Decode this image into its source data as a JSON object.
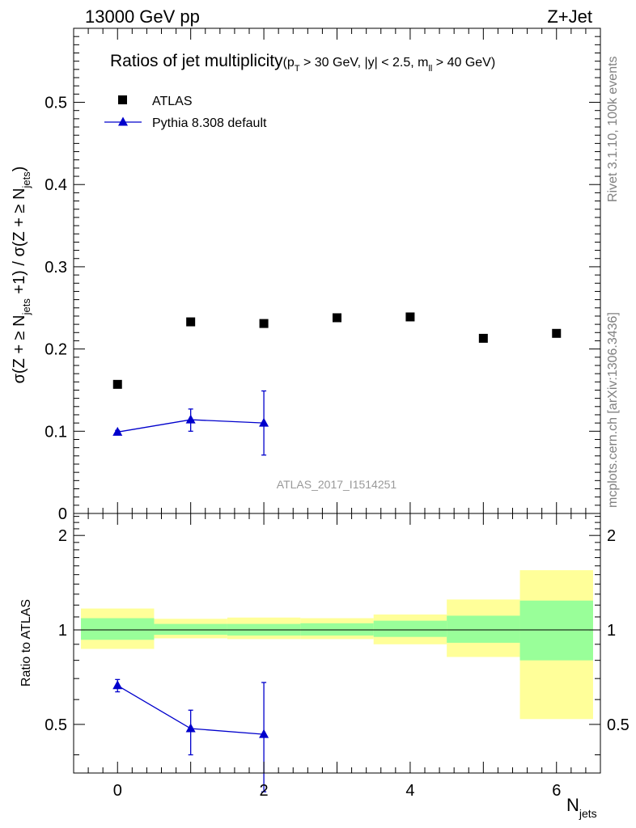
{
  "header": {
    "left": "13000 GeV pp",
    "right": "Z+Jet"
  },
  "side_labels": {
    "rivet": "Rivet 3.1.10,  100k events",
    "mcplots": "mcplots.cern.ch [arXiv:1306.3436]"
  },
  "chart_data": [
    {
      "type": "scatter",
      "title": {
        "main": "Ratios of jet multiplicity",
        "cuts": "(p_T > 30 GeV, |y| < 2.5, m_ll > 40 GeV)"
      },
      "analysis_tag": "ATLAS_2017_I1514251",
      "ylabel": "σ(Z + ≥ N_jets + 1) / σ(Z + ≥ N_jets)",
      "xlim": [
        -0.6,
        6.6
      ],
      "ylim": [
        0,
        0.59
      ],
      "yticks": [
        0,
        0.1,
        0.2,
        0.3,
        0.4,
        0.5
      ],
      "ytick_labels": [
        "0",
        "0.1",
        "0.2",
        "0.3",
        "0.4",
        "0.5"
      ],
      "legend": {
        "placement": "top-left",
        "entries": [
          "ATLAS",
          "Pythia 8.308 default"
        ]
      },
      "series": [
        {
          "name": "ATLAS",
          "marker": "square",
          "color": "#000000",
          "x": [
            0,
            1,
            2,
            3,
            4,
            5,
            6
          ],
          "y": [
            0.157,
            0.233,
            0.231,
            0.238,
            0.239,
            0.213,
            0.219
          ]
        },
        {
          "name": "Pythia 8.308 default",
          "marker": "triangle",
          "color": "#0000cc",
          "x": [
            0,
            1,
            2
          ],
          "y": [
            0.099,
            0.114,
            0.11
          ],
          "yerr_low": [
            0.002,
            0.014,
            0.039
          ],
          "yerr_high": [
            0.002,
            0.013,
            0.039
          ]
        }
      ]
    },
    {
      "type": "scatter",
      "ylabel": "Ratio to ATLAS",
      "xlabel": "N_jets",
      "xlim": [
        -0.6,
        6.6
      ],
      "xticks": [
        0,
        2,
        4,
        6
      ],
      "xtick_labels": [
        "0",
        "2",
        "4",
        "6"
      ],
      "ylim": [
        0.35,
        2.35
      ],
      "yticks": [
        0.5,
        1,
        2
      ],
      "ytick_labels": [
        "0.5",
        "1",
        "2"
      ],
      "log_y": true,
      "reference_line": 1,
      "bands": {
        "bins": [
          [
            -0.5,
            0.5
          ],
          [
            0.5,
            1.5
          ],
          [
            1.5,
            2.5
          ],
          [
            2.5,
            3.5
          ],
          [
            3.5,
            4.5
          ],
          [
            4.5,
            5.5
          ],
          [
            5.5,
            6.5
          ]
        ],
        "inner": {
          "color": "#99ff99",
          "low": [
            0.93,
            0.965,
            0.96,
            0.96,
            0.95,
            0.91,
            0.8
          ],
          "high": [
            1.09,
            1.045,
            1.045,
            1.05,
            1.07,
            1.11,
            1.24
          ]
        },
        "outer": {
          "color": "#ffff99",
          "low": [
            0.87,
            0.94,
            0.935,
            0.935,
            0.9,
            0.82,
            0.52
          ],
          "high": [
            1.17,
            1.085,
            1.095,
            1.09,
            1.12,
            1.25,
            1.55
          ]
        }
      },
      "series": [
        {
          "name": "Pythia 8.308 default",
          "marker": "triangle",
          "color": "#0000cc",
          "x": [
            0,
            1,
            2
          ],
          "y": [
            0.665,
            0.485,
            0.465
          ],
          "yerr_low": [
            0.03,
            0.085,
            0.16
          ],
          "yerr_high": [
            0.03,
            0.07,
            0.215
          ]
        }
      ]
    }
  ]
}
